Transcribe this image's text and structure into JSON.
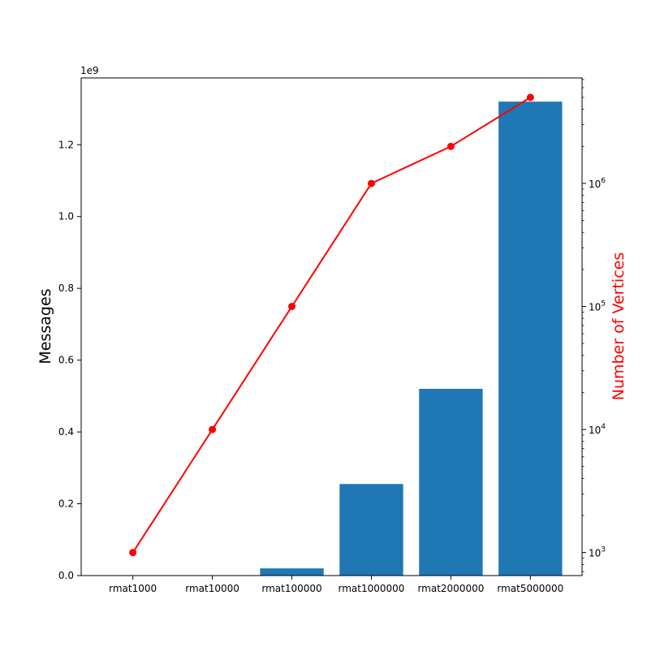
{
  "chart_data": {
    "type": "bar",
    "categories": [
      "rmat1000",
      "rmat10000",
      "rmat100000",
      "rmat1000000",
      "rmat2000000",
      "rmat5000000"
    ],
    "series": [
      {
        "axis": "left",
        "type": "bar",
        "color": "#1f77b4",
        "values": [
          0,
          0,
          20000000,
          255000000,
          520000000,
          1320000000
        ]
      },
      {
        "axis": "right",
        "type": "line",
        "color": "#ff0000",
        "marker": "circle",
        "values": [
          1000,
          10000,
          100000,
          1000000,
          2000000,
          5000000
        ]
      }
    ],
    "ylabel": "Messages",
    "y2label": "Number of Vertices",
    "y2label_color": "#ff0000",
    "ylim": [
      0,
      1386000000
    ],
    "y2lim": [
      650,
      7200000
    ],
    "y2scale": "log",
    "y_offset_text": "1e9",
    "yticks": [
      {
        "value": 0,
        "label": "0.0"
      },
      {
        "value": 200000000,
        "label": "0.2"
      },
      {
        "value": 400000000,
        "label": "0.4"
      },
      {
        "value": 600000000,
        "label": "0.6"
      },
      {
        "value": 800000000,
        "label": "0.8"
      },
      {
        "value": 1000000000,
        "label": "1.0"
      },
      {
        "value": 1200000000,
        "label": "1.2"
      }
    ],
    "y2ticks": [
      {
        "value": 1000,
        "base": "10",
        "exp": "3"
      },
      {
        "value": 10000,
        "base": "10",
        "exp": "4"
      },
      {
        "value": 100000,
        "base": "10",
        "exp": "5"
      },
      {
        "value": 1000000,
        "base": "10",
        "exp": "6"
      }
    ],
    "grid": false,
    "legend": "none"
  }
}
